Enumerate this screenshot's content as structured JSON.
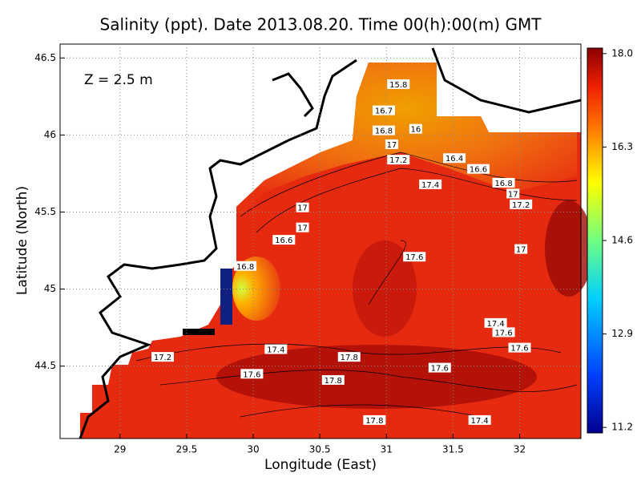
{
  "title": "Salinity (ppt). Date 2013.08.20. Time 00(h):00(m) GMT",
  "annotation": "Z = 2.5 m",
  "x_axis": {
    "label": "Longitude (East)",
    "lim": [
      28.55,
      32.46
    ],
    "ticks": [
      29,
      29.5,
      30,
      30.5,
      31,
      31.5,
      32
    ]
  },
  "y_axis": {
    "label": "Latitude (North)",
    "lim": [
      44.03,
      46.59
    ],
    "ticks": [
      44.5,
      45,
      45.5,
      46,
      46.5
    ]
  },
  "colorbar": {
    "lim": [
      11.1,
      18.1
    ],
    "ticks": [
      {
        "value": 18,
        "label": "18.0"
      },
      16.3,
      14.6,
      12.9,
      11.2
    ]
  },
  "contour_labels": [
    {
      "value": 15.8,
      "lon": 31.09,
      "lat": 46.33
    },
    {
      "value": 16.7,
      "lon": 30.98,
      "lat": 46.16
    },
    {
      "value": 16,
      "lon": 31.22,
      "lat": 46.04
    },
    {
      "value": 16.8,
      "lon": 30.98,
      "lat": 46.03
    },
    {
      "value": 17,
      "lon": 31.04,
      "lat": 45.94
    },
    {
      "value": 17.2,
      "lon": 31.09,
      "lat": 45.84
    },
    {
      "value": 16.4,
      "lon": 31.51,
      "lat": 45.85
    },
    {
      "value": 16.6,
      "lon": 31.69,
      "lat": 45.78
    },
    {
      "value": 17.4,
      "lon": 31.33,
      "lat": 45.68
    },
    {
      "value": 16.8,
      "lon": 31.88,
      "lat": 45.69
    },
    {
      "value": 17,
      "lon": 31.95,
      "lat": 45.62
    },
    {
      "value": 17.2,
      "lon": 32.01,
      "lat": 45.55
    },
    {
      "value": 17,
      "lon": 30.37,
      "lat": 45.53
    },
    {
      "value": 17,
      "lon": 30.37,
      "lat": 45.4
    },
    {
      "value": 16.6,
      "lon": 30.23,
      "lat": 45.32
    },
    {
      "value": 16.8,
      "lon": 29.94,
      "lat": 45.15
    },
    {
      "value": 17.6,
      "lon": 31.21,
      "lat": 45.21
    },
    {
      "value": 17,
      "lon": 32.01,
      "lat": 45.26
    },
    {
      "value": 17.4,
      "lon": 31.82,
      "lat": 44.78
    },
    {
      "value": 17.6,
      "lon": 31.88,
      "lat": 44.72
    },
    {
      "value": 17.6,
      "lon": 32.0,
      "lat": 44.62
    },
    {
      "value": 17.4,
      "lon": 30.17,
      "lat": 44.61
    },
    {
      "value": 17.8,
      "lon": 30.72,
      "lat": 44.56
    },
    {
      "value": 17.2,
      "lon": 29.32,
      "lat": 44.56
    },
    {
      "value": 17.6,
      "lon": 31.4,
      "lat": 44.49
    },
    {
      "value": 17.6,
      "lon": 29.99,
      "lat": 44.45
    },
    {
      "value": 17.8,
      "lon": 30.6,
      "lat": 44.41
    },
    {
      "value": 17.8,
      "lon": 30.91,
      "lat": 44.15
    },
    {
      "value": 17.4,
      "lon": 31.7,
      "lat": 44.15
    }
  ]
}
